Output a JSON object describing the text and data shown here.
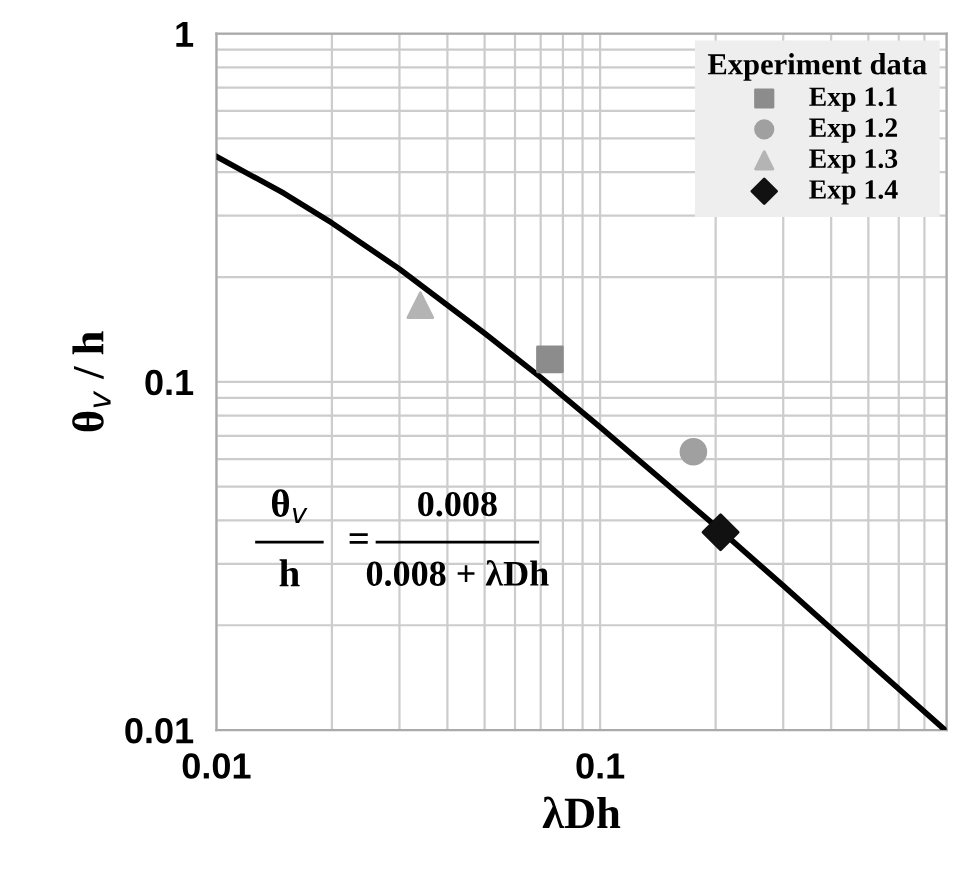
{
  "chart_data": {
    "type": "scatter",
    "xlabel": "λDh",
    "ylabel": "θ$_{v}$ / h",
    "legend_title": "Experiment data",
    "legend": "top right",
    "log": "xy",
    "grid": true,
    "xlim": [
      0.01,
      0.8
    ],
    "ylim": [
      0.01,
      1
    ],
    "xticks": [
      0.01,
      0.1
    ],
    "yticks": [
      0.01,
      0.1,
      1
    ],
    "series": [
      {
        "type": "line",
        "color": "#000000",
        "marker": "none",
        "line_style": "solid",
        "x": [
          0.01,
          0.015,
          0.02,
          0.03,
          0.05,
          0.07,
          0.1,
          0.15,
          0.2,
          0.3,
          0.5,
          0.792
        ],
        "values": [
          0.444,
          0.348,
          0.286,
          0.211,
          0.138,
          0.103,
          0.0741,
          0.0506,
          0.0385,
          0.026,
          0.0157,
          0.01
        ]
      },
      {
        "name": "Exp 1.1",
        "color": "#8c8c8c",
        "marker": "square",
        "x": [
          0.074
        ],
        "values": [
          0.116
        ]
      },
      {
        "name": "Exp 1.2",
        "color": "#a0a0a0",
        "marker": "circle",
        "x": [
          0.175
        ],
        "values": [
          0.063
        ]
      },
      {
        "name": "Exp 1.3",
        "color": "#b4b4b4",
        "marker": "triangle",
        "x": [
          0.034
        ],
        "values": [
          0.166
        ]
      },
      {
        "name": "Exp 1.4",
        "color": "#111111",
        "marker": "diamond",
        "x": [
          0.206
        ],
        "values": [
          0.037
        ]
      }
    ],
    "annotations": [
      "θ$_{v}$",
      "h",
      "=",
      "0.008",
      "0.008 + λDh"
    ]
  }
}
